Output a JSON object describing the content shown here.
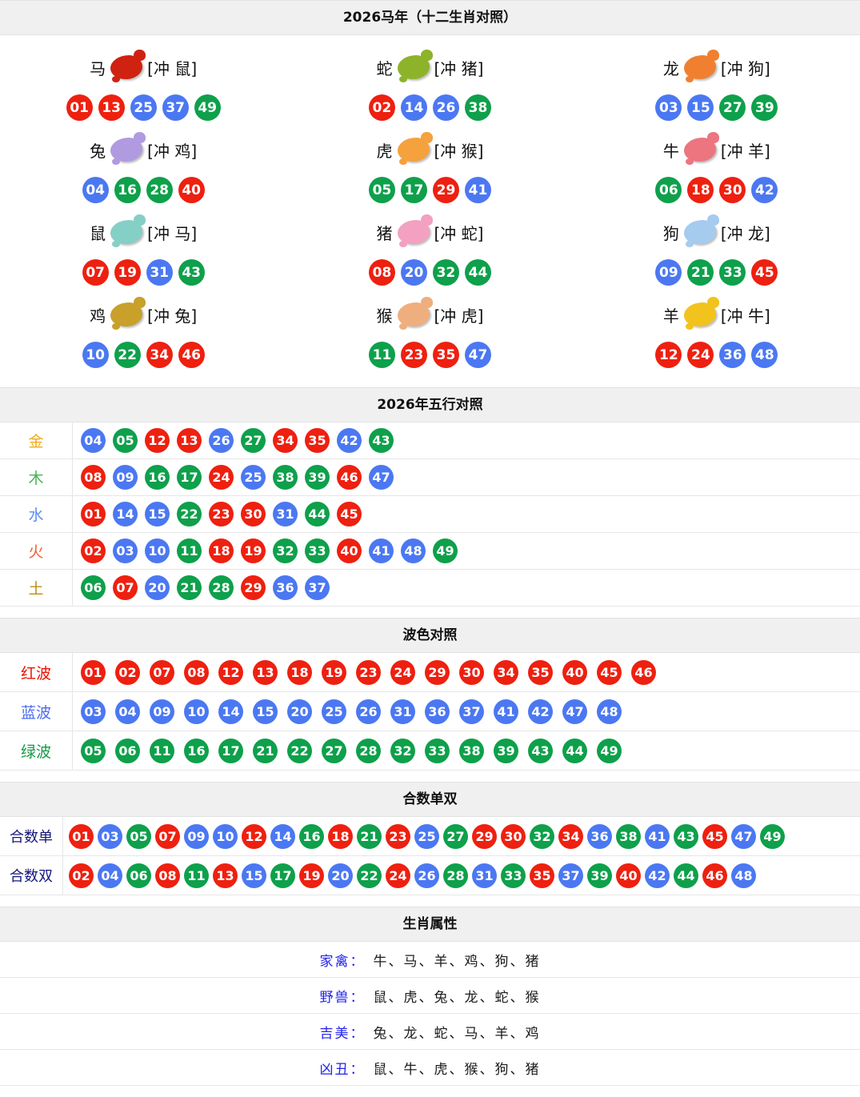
{
  "colors": {
    "ball_red": "#ee2010",
    "ball_blue": "#4b78f2",
    "ball_green": "#0ea04b",
    "header_bg": "#f0f0f0"
  },
  "sections": {
    "zodiac": {
      "title": "2026马年（十二生肖对照）",
      "cells": [
        {
          "name": "马",
          "icon": "horse-icon",
          "icon_color": "#cf2211",
          "clash": "[冲 鼠]",
          "balls": [
            "01",
            "13",
            "25",
            "37",
            "49"
          ]
        },
        {
          "name": "蛇",
          "icon": "snake-icon",
          "icon_color": "#8db32a",
          "clash": "[冲 猪]",
          "balls": [
            "02",
            "14",
            "26",
            "38"
          ]
        },
        {
          "name": "龙",
          "icon": "dragon-icon",
          "icon_color": "#f08030",
          "clash": "[冲 狗]",
          "balls": [
            "03",
            "15",
            "27",
            "39"
          ]
        },
        {
          "name": "兔",
          "icon": "rabbit-icon",
          "icon_color": "#b09ae0",
          "clash": "[冲 鸡]",
          "balls": [
            "04",
            "16",
            "28",
            "40"
          ]
        },
        {
          "name": "虎",
          "icon": "tiger-icon",
          "icon_color": "#f5a13d",
          "clash": "[冲 猴]",
          "balls": [
            "05",
            "17",
            "29",
            "41"
          ]
        },
        {
          "name": "牛",
          "icon": "ox-icon",
          "icon_color": "#ec7580",
          "clash": "[冲 羊]",
          "balls": [
            "06",
            "18",
            "30",
            "42"
          ]
        },
        {
          "name": "鼠",
          "icon": "rat-icon",
          "icon_color": "#84cfc6",
          "clash": "[冲 马]",
          "balls": [
            "07",
            "19",
            "31",
            "43"
          ]
        },
        {
          "name": "猪",
          "icon": "pig-icon",
          "icon_color": "#f4a0c0",
          "clash": "[冲 蛇]",
          "balls": [
            "08",
            "20",
            "32",
            "44"
          ]
        },
        {
          "name": "狗",
          "icon": "dog-icon",
          "icon_color": "#a5cbee",
          "clash": "[冲 龙]",
          "balls": [
            "09",
            "21",
            "33",
            "45"
          ]
        },
        {
          "name": "鸡",
          "icon": "rooster-icon",
          "icon_color": "#c8a02a",
          "clash": "[冲 兔]",
          "balls": [
            "10",
            "22",
            "34",
            "46"
          ]
        },
        {
          "name": "猴",
          "icon": "monkey-icon",
          "icon_color": "#efae7d",
          "clash": "[冲 虎]",
          "balls": [
            "11",
            "23",
            "35",
            "47"
          ]
        },
        {
          "name": "羊",
          "icon": "goat-icon",
          "icon_color": "#f2c31c",
          "clash": "[冲 牛]",
          "balls": [
            "12",
            "24",
            "36",
            "48"
          ]
        }
      ]
    },
    "elements": {
      "title": "2026年五行对照",
      "rows": [
        {
          "label": "金",
          "label_color": "#f0ab1c",
          "balls": [
            "04",
            "05",
            "12",
            "13",
            "26",
            "27",
            "34",
            "35",
            "42",
            "43"
          ]
        },
        {
          "label": "木",
          "label_color": "#47b354",
          "balls": [
            "08",
            "09",
            "16",
            "17",
            "24",
            "25",
            "38",
            "39",
            "46",
            "47"
          ]
        },
        {
          "label": "水",
          "label_color": "#5b8bf7",
          "balls": [
            "01",
            "14",
            "15",
            "22",
            "23",
            "30",
            "31",
            "44",
            "45"
          ]
        },
        {
          "label": "火",
          "label_color": "#fa5d2c",
          "balls": [
            "02",
            "03",
            "10",
            "11",
            "18",
            "19",
            "32",
            "33",
            "40",
            "41",
            "48",
            "49"
          ]
        },
        {
          "label": "土",
          "label_color": "#bd8d12",
          "balls": [
            "06",
            "07",
            "20",
            "21",
            "28",
            "29",
            "36",
            "37"
          ]
        }
      ]
    },
    "waves": {
      "title": "波色对照",
      "rows": [
        {
          "label": "红波",
          "label_color": "#ee1000",
          "color_key": "red",
          "numbers": [
            "01",
            "02",
            "07",
            "08",
            "12",
            "13",
            "18",
            "19",
            "23",
            "24",
            "29",
            "30",
            "34",
            "35",
            "40",
            "45",
            "46"
          ]
        },
        {
          "label": "蓝波",
          "label_color": "#4b6df0",
          "color_key": "blue",
          "numbers": [
            "03",
            "04",
            "09",
            "10",
            "14",
            "15",
            "20",
            "25",
            "26",
            "31",
            "36",
            "37",
            "41",
            "42",
            "47",
            "48"
          ]
        },
        {
          "label": "绿波",
          "label_color": "#159a47",
          "color_key": "green",
          "numbers": [
            "05",
            "06",
            "11",
            "16",
            "17",
            "21",
            "22",
            "27",
            "28",
            "32",
            "33",
            "38",
            "39",
            "43",
            "44",
            "49"
          ]
        }
      ]
    },
    "sums": {
      "title": "合数单双",
      "rows": [
        {
          "label": "合数单",
          "label_color": "#16167e",
          "balls": [
            "01",
            "03",
            "05",
            "07",
            "09",
            "10",
            "12",
            "14",
            "16",
            "18",
            "21",
            "23",
            "25",
            "27",
            "29",
            "30",
            "32",
            "34",
            "36",
            "38",
            "41",
            "43",
            "45",
            "47",
            "49"
          ]
        },
        {
          "label": "合数双",
          "label_color": "#16167e",
          "balls": [
            "02",
            "04",
            "06",
            "08",
            "11",
            "13",
            "15",
            "17",
            "19",
            "20",
            "22",
            "24",
            "26",
            "28",
            "31",
            "33",
            "35",
            "37",
            "39",
            "40",
            "42",
            "44",
            "46",
            "48"
          ]
        }
      ]
    },
    "attributes": {
      "title": "生肖属性",
      "rows": [
        {
          "label": "家禽：",
          "value": "牛、马、羊、鸡、狗、猪"
        },
        {
          "label": "野兽：",
          "value": "鼠、虎、兔、龙、蛇、猴"
        },
        {
          "label": "吉美：",
          "value": "兔、龙、蛇、马、羊、鸡"
        },
        {
          "label": "凶丑：",
          "value": "鼠、牛、虎、猴、狗、猪"
        }
      ]
    }
  }
}
